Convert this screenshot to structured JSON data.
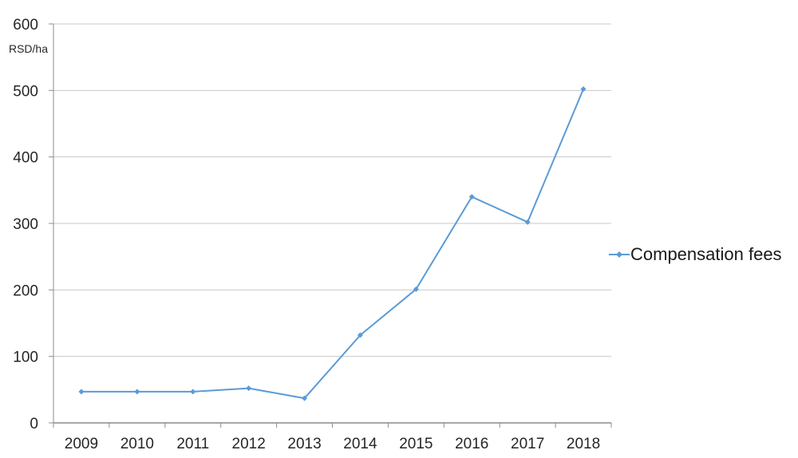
{
  "chart_data": {
    "type": "line",
    "title": "",
    "xlabel": "",
    "ylabel": "RSD/ha",
    "categories": [
      "2009",
      "2010",
      "2011",
      "2012",
      "2013",
      "2014",
      "2015",
      "2016",
      "2017",
      "2018"
    ],
    "series": [
      {
        "name": "Compensation fees",
        "values": [
          47,
          47,
          47,
          52,
          37,
          132,
          201,
          340,
          302,
          502
        ]
      }
    ],
    "ylim": [
      0,
      600
    ],
    "yticks": [
      0,
      100,
      200,
      300,
      400,
      500,
      600
    ],
    "grid": "horizontal-only",
    "legend_position": "right-middle",
    "marker": "diamond",
    "colors": {
      "line": "#5B9BD5",
      "gridline": "#C9C9C9",
      "axis": "#8C8C8C",
      "text": "#262626",
      "background": "#FFFFFF"
    }
  }
}
